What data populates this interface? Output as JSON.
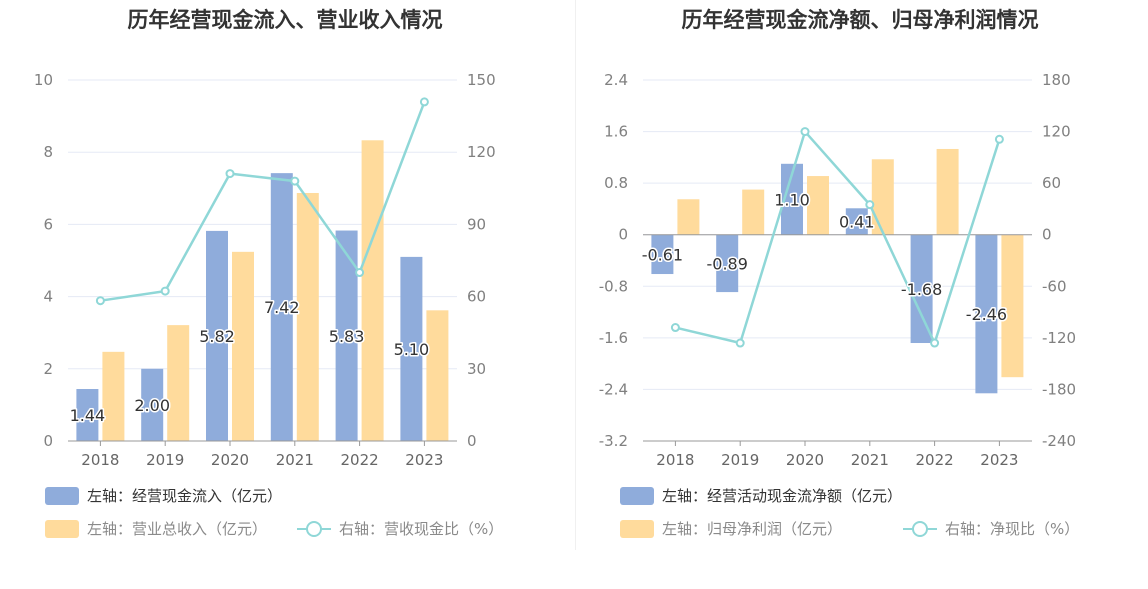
{
  "colors": {
    "blue": "#8facdb",
    "orange": "#ffdb9c",
    "line": "#8fd7d7",
    "grid": "#e5eaf5",
    "axis": "#999999"
  },
  "chart_data": [
    {
      "type": "bar",
      "title": "历年经营现金流入、营业收入情况",
      "categories": [
        "2018",
        "2019",
        "2020",
        "2021",
        "2022",
        "2023"
      ],
      "left_axis": {
        "ylim": [
          0,
          10
        ],
        "ticks": [
          "0",
          "2",
          "4",
          "6",
          "8",
          "10"
        ]
      },
      "right_axis": {
        "ylim": [
          0,
          150
        ],
        "ticks": [
          "0",
          "30",
          "60",
          "90",
          "120",
          "150"
        ]
      },
      "series": [
        {
          "name": "左轴：经营现金流入（亿元）",
          "kind": "bar",
          "axis": "left",
          "color": "#8facdb",
          "values": [
            1.44,
            2.0,
            5.82,
            7.42,
            5.83,
            5.1
          ],
          "labels": [
            "1.44",
            "2.00",
            "5.82",
            "7.42",
            "5.83",
            "5.10"
          ]
        },
        {
          "name": "左轴：营业总收入（亿元）",
          "kind": "bar",
          "axis": "left",
          "color": "#ffdb9c",
          "values": [
            2.47,
            3.21,
            5.24,
            6.87,
            8.33,
            3.62
          ]
        },
        {
          "name": "右轴：营收现金比（%）",
          "kind": "line",
          "axis": "right",
          "color": "#8fd7d7",
          "values": [
            58.3,
            62.3,
            111.1,
            108.0,
            70.0,
            140.9
          ]
        }
      ]
    },
    {
      "type": "bar",
      "title": "历年经营现金流净额、归母净利润情况",
      "categories": [
        "2018",
        "2019",
        "2020",
        "2021",
        "2022",
        "2023"
      ],
      "left_axis": {
        "ylim": [
          -3.2,
          2.4
        ],
        "ticks": [
          "-3.2",
          "-2.4",
          "-1.6",
          "-0.8",
          "0",
          "0.8",
          "1.6",
          "2.4"
        ]
      },
      "right_axis": {
        "ylim": [
          -240,
          180
        ],
        "ticks": [
          "-240",
          "-180",
          "-120",
          "-60",
          "0",
          "60",
          "120",
          "180"
        ]
      },
      "series": [
        {
          "name": "左轴：经营活动现金流净额（亿元）",
          "kind": "bar",
          "axis": "left",
          "color": "#8facdb",
          "values": [
            -0.61,
            -0.89,
            1.1,
            0.41,
            -1.68,
            -2.46
          ],
          "labels": [
            "-0.61",
            "-0.89",
            "1.10",
            "0.41",
            "-1.68",
            "-2.46"
          ]
        },
        {
          "name": "左轴：归母净利润（亿元）",
          "kind": "bar",
          "axis": "left",
          "color": "#ffdb9c",
          "values": [
            0.55,
            0.7,
            0.91,
            1.17,
            1.33,
            -2.21
          ]
        },
        {
          "name": "右轴：净现比（%）",
          "kind": "line",
          "axis": "right",
          "color": "#8fd7d7",
          "values": [
            -108.0,
            -126.0,
            120.0,
            35.0,
            -126.0,
            111.0
          ]
        }
      ]
    }
  ]
}
